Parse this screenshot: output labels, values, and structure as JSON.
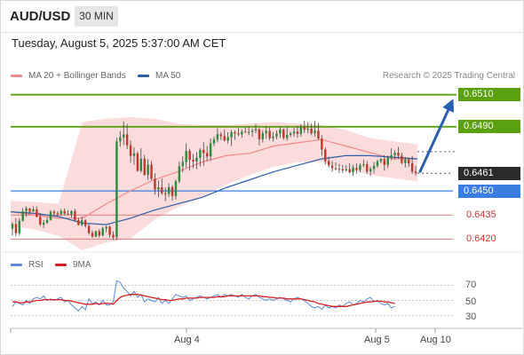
{
  "header": {
    "symbol": "AUD/USD",
    "timeframe": "30 MIN"
  },
  "datetime": "Tuesday, August 5, 2025 5:37:00 AM CET",
  "legend": [
    {
      "label": "MA 20 + Bollinger Bands",
      "color": "#f08a8a"
    },
    {
      "label": "MA 50",
      "color": "#2e5fa8"
    }
  ],
  "copyright": "Research © 2025 Trading Central",
  "colors": {
    "up_candle": "#2e8b3e",
    "down_candle": "#c0392b",
    "bollinger_fill": "#fbd8d8",
    "ma20": "#f08a8a",
    "ma50": "#2e5fa8",
    "resistance": "#5aa00f",
    "pivot": "#3b7de0",
    "support": "#e07a7a",
    "arrow": "#2a5fb0",
    "rsi": "#5b8ad8",
    "rsi_ma": "#d61f1f"
  },
  "chart_data": [
    {
      "type": "candlestick",
      "title": "",
      "x_tick_labels": [
        "Aug 4",
        "Aug 5",
        "Aug 10"
      ],
      "ylim": [
        0.6413,
        0.6522
      ],
      "candles": [
        [
          0.64264,
          0.64306,
          0.6422,
          0.64293
        ],
        [
          0.64293,
          0.6433,
          0.64217,
          0.64236
        ],
        [
          0.64236,
          0.64331,
          0.64221,
          0.64314
        ],
        [
          0.64314,
          0.64393,
          0.64309,
          0.64374
        ],
        [
          0.64374,
          0.64404,
          0.64339,
          0.64391
        ],
        [
          0.64391,
          0.64395,
          0.64355,
          0.64371
        ],
        [
          0.64371,
          0.64403,
          0.64369,
          0.64385
        ],
        [
          0.64385,
          0.64403,
          0.64334,
          0.64339
        ],
        [
          0.64339,
          0.64362,
          0.64282,
          0.6429
        ],
        [
          0.6429,
          0.64318,
          0.64269,
          0.64302
        ],
        [
          0.64302,
          0.64337,
          0.64294,
          0.64319
        ],
        [
          0.64319,
          0.6438,
          0.64314,
          0.64371
        ],
        [
          0.64371,
          0.64381,
          0.64348,
          0.6436
        ],
        [
          0.6436,
          0.64374,
          0.64343,
          0.64355
        ],
        [
          0.64355,
          0.64387,
          0.64346,
          0.64375
        ],
        [
          0.64375,
          0.64391,
          0.64348,
          0.64359
        ],
        [
          0.64359,
          0.64381,
          0.6435,
          0.64354
        ],
        [
          0.64354,
          0.64379,
          0.64333,
          0.64374
        ],
        [
          0.64374,
          0.64388,
          0.6431,
          0.64318
        ],
        [
          0.64318,
          0.64332,
          0.64285,
          0.64288
        ],
        [
          0.64288,
          0.6434,
          0.6428,
          0.64317
        ],
        [
          0.64317,
          0.64326,
          0.6427,
          0.64282
        ],
        [
          0.64282,
          0.64293,
          0.64227,
          0.64238
        ],
        [
          0.64238,
          0.64254,
          0.64208,
          0.64215
        ],
        [
          0.64215,
          0.64253,
          0.64213,
          0.64249
        ],
        [
          0.64249,
          0.64261,
          0.64209,
          0.64222
        ],
        [
          0.64222,
          0.64276,
          0.64218,
          0.64267
        ],
        [
          0.64267,
          0.64283,
          0.64242,
          0.64277
        ],
        [
          0.64277,
          0.64284,
          0.64208,
          0.64226
        ],
        [
          0.64226,
          0.64248,
          0.64195,
          0.64211
        ],
        [
          0.64211,
          0.64831,
          0.64194,
          0.64809
        ],
        [
          0.64809,
          0.64873,
          0.64776,
          0.64834
        ],
        [
          0.64834,
          0.64933,
          0.64785,
          0.64853
        ],
        [
          0.64853,
          0.64918,
          0.64761,
          0.64785
        ],
        [
          0.64785,
          0.64815,
          0.64676,
          0.64719
        ],
        [
          0.64719,
          0.64772,
          0.64664,
          0.64734
        ],
        [
          0.64734,
          0.64746,
          0.6462,
          0.64625
        ],
        [
          0.64625,
          0.64766,
          0.64613,
          0.64701
        ],
        [
          0.64701,
          0.64725,
          0.64594,
          0.646
        ],
        [
          0.646,
          0.64698,
          0.64569,
          0.64664
        ],
        [
          0.64664,
          0.64687,
          0.64568,
          0.64576
        ],
        [
          0.64576,
          0.64611,
          0.64478,
          0.64509
        ],
        [
          0.64509,
          0.64566,
          0.64461,
          0.64523
        ],
        [
          0.64523,
          0.64578,
          0.64476,
          0.64485
        ],
        [
          0.64485,
          0.64522,
          0.64437,
          0.64481
        ],
        [
          0.64481,
          0.64548,
          0.64463,
          0.64524
        ],
        [
          0.64524,
          0.64535,
          0.64439,
          0.64468
        ],
        [
          0.64468,
          0.64571,
          0.64446,
          0.6456
        ],
        [
          0.6456,
          0.64683,
          0.64549,
          0.64654
        ],
        [
          0.64654,
          0.64715,
          0.64616,
          0.6468
        ],
        [
          0.6468,
          0.64796,
          0.64645,
          0.64749
        ],
        [
          0.64749,
          0.64762,
          0.64626,
          0.64694
        ],
        [
          0.64694,
          0.6473,
          0.64641,
          0.64684
        ],
        [
          0.64684,
          0.64742,
          0.64637,
          0.64707
        ],
        [
          0.64707,
          0.64767,
          0.64652,
          0.64756
        ],
        [
          0.64756,
          0.64804,
          0.64657,
          0.64736
        ],
        [
          0.64736,
          0.64781,
          0.64685,
          0.64715
        ],
        [
          0.64715,
          0.64828,
          0.64687,
          0.64797
        ],
        [
          0.64797,
          0.64839,
          0.6478,
          0.6482
        ],
        [
          0.6482,
          0.64891,
          0.64803,
          0.64853
        ],
        [
          0.64853,
          0.64867,
          0.64816,
          0.64842
        ],
        [
          0.64842,
          0.64883,
          0.64808,
          0.64814
        ],
        [
          0.64814,
          0.64866,
          0.64795,
          0.64834
        ],
        [
          0.64834,
          0.6488,
          0.6478,
          0.64866
        ],
        [
          0.64866,
          0.64878,
          0.64818,
          0.64859
        ],
        [
          0.64859,
          0.64892,
          0.64842,
          0.64853
        ],
        [
          0.64853,
          0.64883,
          0.64832,
          0.64869
        ],
        [
          0.64869,
          0.64898,
          0.64863,
          0.64866
        ],
        [
          0.64866,
          0.64902,
          0.64847,
          0.64868
        ],
        [
          0.64868,
          0.64889,
          0.64837,
          0.64876
        ],
        [
          0.64876,
          0.64917,
          0.6486,
          0.64885
        ],
        [
          0.64885,
          0.6489,
          0.64783,
          0.64822
        ],
        [
          0.64822,
          0.64878,
          0.64801,
          0.6486
        ],
        [
          0.6486,
          0.64902,
          0.64825,
          0.64874
        ],
        [
          0.64874,
          0.64896,
          0.64815,
          0.64829
        ],
        [
          0.64829,
          0.64867,
          0.64808,
          0.64839
        ],
        [
          0.64839,
          0.64878,
          0.64822,
          0.64858
        ],
        [
          0.64858,
          0.649,
          0.6483,
          0.64883
        ],
        [
          0.64883,
          0.6489,
          0.64819,
          0.6483
        ],
        [
          0.6483,
          0.649,
          0.64814,
          0.64849
        ],
        [
          0.64849,
          0.64869,
          0.64836,
          0.64859
        ],
        [
          0.64859,
          0.64893,
          0.64838,
          0.6487
        ],
        [
          0.6487,
          0.64905,
          0.64831,
          0.64856
        ],
        [
          0.64856,
          0.64917,
          0.64839,
          0.64899
        ],
        [
          0.64899,
          0.64937,
          0.64862,
          0.64882
        ],
        [
          0.64882,
          0.64928,
          0.64858,
          0.64888
        ],
        [
          0.64888,
          0.64919,
          0.64847,
          0.64859
        ],
        [
          0.64859,
          0.64936,
          0.64837,
          0.64875
        ],
        [
          0.64875,
          0.64924,
          0.64819,
          0.64826
        ],
        [
          0.64826,
          0.64848,
          0.6472,
          0.64758
        ],
        [
          0.64758,
          0.64772,
          0.64665,
          0.64686
        ],
        [
          0.64686,
          0.64713,
          0.64646,
          0.64659
        ],
        [
          0.64659,
          0.64686,
          0.64619,
          0.64642
        ],
        [
          0.64642,
          0.64678,
          0.64629,
          0.6464
        ],
        [
          0.6464,
          0.64668,
          0.64611,
          0.64636
        ],
        [
          0.64636,
          0.64661,
          0.64612,
          0.64627
        ],
        [
          0.64627,
          0.64661,
          0.64619,
          0.64635
        ],
        [
          0.64635,
          0.64673,
          0.6461,
          0.64616
        ],
        [
          0.64616,
          0.64663,
          0.64594,
          0.64644
        ],
        [
          0.64644,
          0.64671,
          0.64608,
          0.64631
        ],
        [
          0.64631,
          0.64673,
          0.64616,
          0.6466
        ],
        [
          0.6466,
          0.64695,
          0.64647,
          0.64666
        ],
        [
          0.64666,
          0.64687,
          0.64607,
          0.64621
        ],
        [
          0.64621,
          0.64651,
          0.64594,
          0.64637
        ],
        [
          0.64637,
          0.64679,
          0.64608,
          0.64656
        ],
        [
          0.64656,
          0.64695,
          0.64644,
          0.64685
        ],
        [
          0.64685,
          0.64704,
          0.64673,
          0.64699
        ],
        [
          0.64699,
          0.64722,
          0.64627,
          0.64663
        ],
        [
          0.64663,
          0.64721,
          0.64642,
          0.64707
        ],
        [
          0.64707,
          0.64766,
          0.64692,
          0.64723
        ],
        [
          0.64723,
          0.64753,
          0.64698,
          0.64738
        ],
        [
          0.64738,
          0.64774,
          0.64701,
          0.6472
        ],
        [
          0.6472,
          0.64739,
          0.64665,
          0.64674
        ],
        [
          0.64674,
          0.64712,
          0.64646,
          0.64696
        ],
        [
          0.64696,
          0.64706,
          0.64651,
          0.64672
        ],
        [
          0.64672,
          0.64718,
          0.64605,
          0.64621
        ],
        [
          0.64621,
          0.64657,
          0.64594,
          0.6461
        ]
      ],
      "ma20": [
        0.6437,
        0.6435,
        0.6433,
        0.6433,
        0.6442,
        0.645,
        0.6457,
        0.6462,
        0.6468,
        0.6472,
        0.64735,
        0.6478,
        0.648,
        0.6482,
        0.6478,
        0.6474,
        0.647,
        0.647
      ],
      "ma50": [
        0.6437,
        0.6436,
        0.6434,
        0.643,
        0.6429,
        0.6433,
        0.6438,
        0.6442,
        0.6446,
        0.6452,
        0.6457,
        0.6462,
        0.6466,
        0.647,
        0.6472,
        0.6472,
        0.6471,
        0.647
      ],
      "bollinger_upper": [
        0.6444,
        0.6443,
        0.6442,
        0.6493,
        0.6495,
        0.6496,
        0.6495,
        0.6492,
        0.6491,
        0.6491,
        0.6492,
        0.6493,
        0.6492,
        0.6491,
        0.6488,
        0.6483,
        0.6481,
        0.6479
      ],
      "bollinger_lower": [
        0.6428,
        0.6426,
        0.6422,
        0.6413,
        0.6418,
        0.642,
        0.6432,
        0.644,
        0.6446,
        0.6454,
        0.646,
        0.6465,
        0.6468,
        0.6468,
        0.6464,
        0.646,
        0.6458,
        0.6456
      ],
      "levels": [
        {
          "value": 0.651,
          "kind": "resistance",
          "label": "0.6510"
        },
        {
          "value": 0.649,
          "kind": "resistance",
          "label": "0.6490"
        },
        {
          "value": 0.6461,
          "kind": "last",
          "label": "0.6461"
        },
        {
          "value": 0.645,
          "kind": "pivot",
          "label": "0.6450"
        },
        {
          "value": 0.6435,
          "kind": "support",
          "label": "0.6435"
        },
        {
          "value": 0.642,
          "kind": "support",
          "label": "0.6420"
        }
      ],
      "projection": {
        "from": 0.6461,
        "to": 0.651,
        "direction": "up"
      }
    },
    {
      "type": "line",
      "title": "",
      "series": [
        {
          "name": "RSI",
          "values": [
            42,
            48,
            46,
            44,
            50,
            46,
            52,
            54,
            52,
            56,
            50,
            52,
            50,
            52,
            54,
            48,
            50,
            44,
            40,
            36,
            42,
            38,
            52,
            46,
            48,
            44,
            50,
            44,
            44,
            48,
            76,
            74,
            66,
            62,
            56,
            62,
            54,
            58,
            48,
            52,
            50,
            48,
            54,
            46,
            50,
            46,
            52,
            58,
            56,
            54,
            56,
            50,
            52,
            54,
            56,
            54,
            52,
            54,
            56,
            58,
            54,
            58,
            56,
            58,
            56,
            54,
            58,
            54,
            52,
            56,
            58,
            54,
            52,
            50,
            52,
            50,
            52,
            54,
            52,
            50,
            48,
            52,
            54,
            52,
            50,
            46,
            42,
            40,
            42,
            38,
            44,
            40,
            42,
            40,
            44,
            42,
            46,
            48,
            44,
            46,
            50,
            48,
            52,
            54,
            48,
            50,
            46,
            44,
            46,
            40,
            42
          ]
        },
        {
          "name": "9MA",
          "values": [
            48,
            48,
            47,
            47,
            48,
            48,
            49,
            50,
            50,
            51,
            51,
            51,
            51,
            51,
            51,
            50,
            50,
            49,
            48,
            47,
            46,
            45,
            45,
            45,
            46,
            45,
            46,
            46,
            46,
            45,
            50,
            54,
            56,
            57,
            58,
            58,
            58,
            57,
            56,
            55,
            54,
            53,
            52,
            51,
            51,
            50,
            50,
            51,
            52,
            52,
            53,
            53,
            53,
            53,
            54,
            54,
            54,
            54,
            54,
            55,
            55,
            55,
            56,
            56,
            56,
            56,
            56,
            56,
            56,
            56,
            56,
            56,
            55,
            55,
            54,
            54,
            53,
            53,
            53,
            52,
            52,
            52,
            52,
            52,
            51,
            50,
            49,
            48,
            46,
            45,
            44,
            43,
            42,
            42,
            42,
            42,
            42,
            43,
            44,
            45,
            46,
            47,
            48,
            48,
            49,
            49,
            49,
            48,
            48,
            47,
            46
          ]
        }
      ],
      "ylim": [
        20,
        80
      ],
      "y_tick_labels": [
        "70",
        "50",
        "30"
      ],
      "reference_lines": [
        70,
        50,
        30
      ]
    }
  ]
}
